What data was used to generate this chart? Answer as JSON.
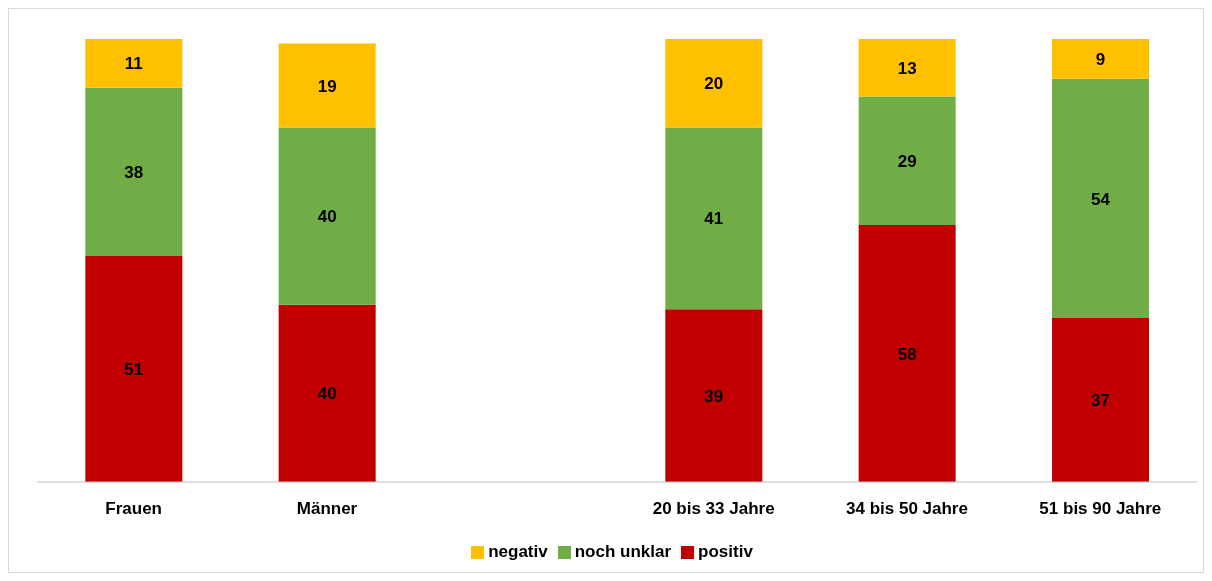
{
  "chart_data": {
    "type": "bar",
    "stacked": true,
    "categories": [
      "Frauen",
      "Männer",
      null,
      "20 bis 33 Jahre",
      "34 bis 50 Jahre",
      "51 bis 90 Jahre"
    ],
    "series": [
      {
        "name": "positiv",
        "color": "#c00000",
        "values": [
          51,
          40,
          null,
          39,
          58,
          37
        ]
      },
      {
        "name": "noch unklar",
        "color": "#70ad47",
        "values": [
          38,
          40,
          null,
          41,
          29,
          54
        ]
      },
      {
        "name": "negativ",
        "color": "#ffc000",
        "values": [
          11,
          19,
          null,
          20,
          13,
          9
        ]
      }
    ],
    "data_labels": true,
    "legend": "bottom",
    "grid": false
  }
}
